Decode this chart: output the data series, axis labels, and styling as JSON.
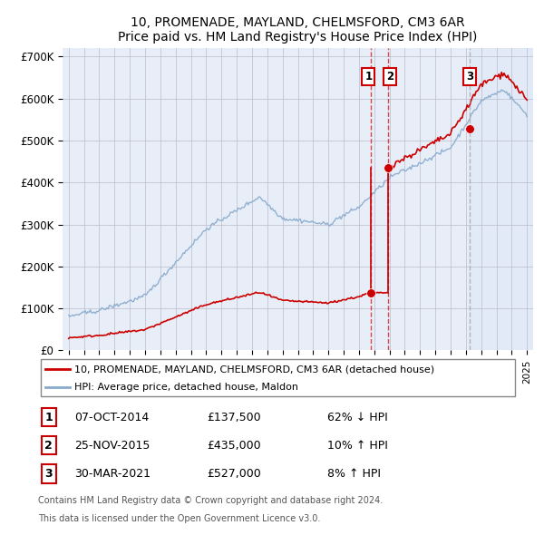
{
  "title": "10, PROMENADE, MAYLAND, CHELMSFORD, CM3 6AR",
  "subtitle": "Price paid vs. HM Land Registry's House Price Index (HPI)",
  "ylim": [
    0,
    720000
  ],
  "yticks": [
    0,
    100000,
    200000,
    300000,
    400000,
    500000,
    600000,
    700000
  ],
  "ytick_labels": [
    "£0",
    "£100K",
    "£200K",
    "£300K",
    "£400K",
    "£500K",
    "£600K",
    "£700K"
  ],
  "xlim_start": 1994.6,
  "xlim_end": 2025.4,
  "sale_dates": [
    2014.77,
    2015.9,
    2021.25
  ],
  "sale_prices": [
    137500,
    435000,
    527000
  ],
  "sale_labels": [
    "1",
    "2",
    "3"
  ],
  "legend_line1": "10, PROMENADE, MAYLAND, CHELMSFORD, CM3 6AR (detached house)",
  "legend_line2": "HPI: Average price, detached house, Maldon",
  "table_data": [
    [
      "1",
      "07-OCT-2014",
      "£137,500",
      "62% ↓ HPI"
    ],
    [
      "2",
      "25-NOV-2015",
      "£435,000",
      "10% ↑ HPI"
    ],
    [
      "3",
      "30-MAR-2021",
      "£527,000",
      "8% ↑ HPI"
    ]
  ],
  "footnote1": "Contains HM Land Registry data © Crown copyright and database right 2024.",
  "footnote2": "This data is licensed under the Open Government Licence v3.0.",
  "red_color": "#cc0000",
  "blue_color": "#88aacc",
  "background_color": "#e8eef8",
  "shade_color": "#dde8f5",
  "grid_color": "#bbbbcc"
}
